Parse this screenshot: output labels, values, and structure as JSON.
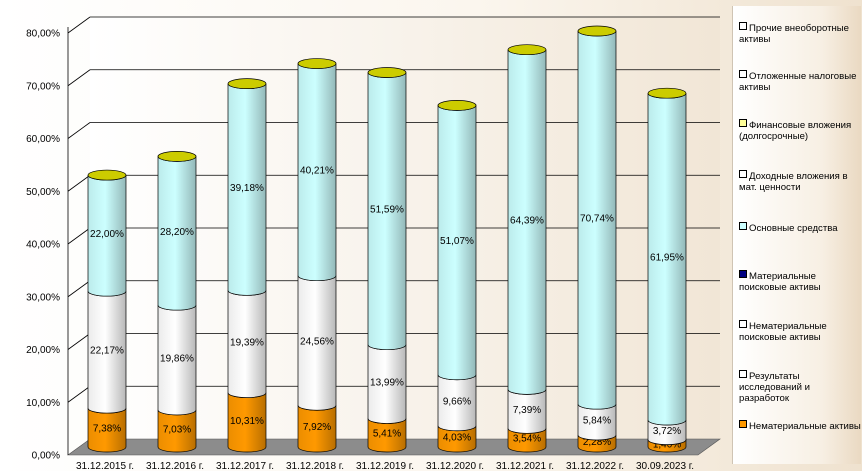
{
  "chart_data": {
    "type": "bar",
    "stacked": true,
    "style": "3d-cylinder",
    "title": "",
    "xlabel": "",
    "ylabel": "",
    "ylim": [
      0,
      80
    ],
    "y_tick_labels": [
      "0,00%",
      "10,00%",
      "20,00%",
      "30,00%",
      "40,00%",
      "50,00%",
      "60,00%",
      "70,00%",
      "80,00%"
    ],
    "grid": true,
    "legend_position": "right",
    "categories": [
      "31.12.2015 г.",
      "31.12.2016 г.",
      "31.12.2017 г.",
      "31.12.2018 г.",
      "31.12.2019 г.",
      "31.12.2020 г.",
      "31.12.2021 г.",
      "31.12.2022 г.",
      "30.09.2023 г."
    ],
    "series": [
      {
        "name": "Нематериальные активы",
        "color": "#ff9900",
        "values": [
          7.38,
          7.03,
          10.31,
          7.92,
          5.41,
          4.03,
          3.54,
          2.28,
          1.4
        ],
        "labels": [
          "7,38%",
          "7,03%",
          "10,31%",
          "7,92%",
          "5,41%",
          "4,03%",
          "3,54%",
          "2,28%",
          "1,40%"
        ]
      },
      {
        "name": "Результаты исследований и разработок",
        "color": "#ffffff",
        "values": [
          22.17,
          19.86,
          19.39,
          24.56,
          13.99,
          9.66,
          7.39,
          5.84,
          3.72
        ],
        "labels": [
          "22,17%",
          "19,86%",
          "19,39%",
          "24,56%",
          "13,99%",
          "9,66%",
          "7,39%",
          "5,84%",
          "3,72%"
        ]
      },
      {
        "name": "Основные средства",
        "color": "#ccffff",
        "values": [
          22.0,
          28.2,
          39.18,
          40.21,
          51.59,
          51.07,
          64.39,
          70.74,
          61.95
        ],
        "labels": [
          "22,00%",
          "28,20%",
          "39,18%",
          "40,21%",
          "51,59%",
          "51,07%",
          "64,39%",
          "70,74%",
          "61,95%"
        ]
      }
    ],
    "legend": [
      {
        "name": "Прочие внеоборотные активы",
        "color": "#ffffff"
      },
      {
        "name": "Отложенные налоговые активы",
        "color": "#ffffff"
      },
      {
        "name": "Финансовые вложения (долгосрочные)",
        "color": "#ffff99"
      },
      {
        "name": "Доходные вложения в мат. ценности",
        "color": "#ffffff"
      },
      {
        "name": "Основные средства",
        "color": "#ccffff"
      },
      {
        "name": "Материальные поисковые активы",
        "color": "#000080"
      },
      {
        "name": "Нематериальные поисковые активы",
        "color": "#ffffff"
      },
      {
        "name": "Результаты исследований и разработок",
        "color": "#ffffff"
      },
      {
        "name": "Нематериальные активы",
        "color": "#ff9900"
      }
    ],
    "top_cap_color": "#cccc00"
  }
}
